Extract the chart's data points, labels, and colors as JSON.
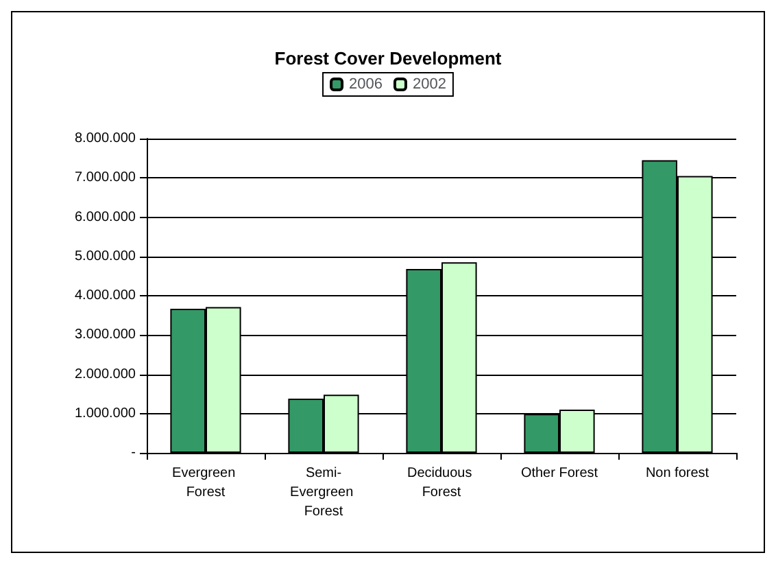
{
  "chart_data": {
    "type": "bar",
    "title": "Forest Cover Development",
    "categories": [
      "Evergreen Forest",
      "Semi-Evergreen Forest",
      "Deciduous Forest",
      "Other Forest",
      "Non forest"
    ],
    "series": [
      {
        "name": "2006",
        "color": "#339966",
        "values": [
          3670000,
          1380000,
          4680000,
          990000,
          7450000
        ]
      },
      {
        "name": "2002",
        "color": "#ccffcc",
        "values": [
          3710000,
          1480000,
          4850000,
          1100000,
          7050000
        ]
      }
    ],
    "ylim": [
      0,
      8000000
    ],
    "yticks": [
      {
        "value": 0,
        "label": "-"
      },
      {
        "value": 1000000,
        "label": "1.000.000"
      },
      {
        "value": 2000000,
        "label": "2.000.000"
      },
      {
        "value": 3000000,
        "label": "3.000.000"
      },
      {
        "value": 4000000,
        "label": "4.000.000"
      },
      {
        "value": 5000000,
        "label": "5.000.000"
      },
      {
        "value": 6000000,
        "label": "6.000.000"
      },
      {
        "value": 7000000,
        "label": "7.000.000"
      },
      {
        "value": 8000000,
        "label": "8.000.000"
      }
    ],
    "grid": "y",
    "legend": "top"
  }
}
